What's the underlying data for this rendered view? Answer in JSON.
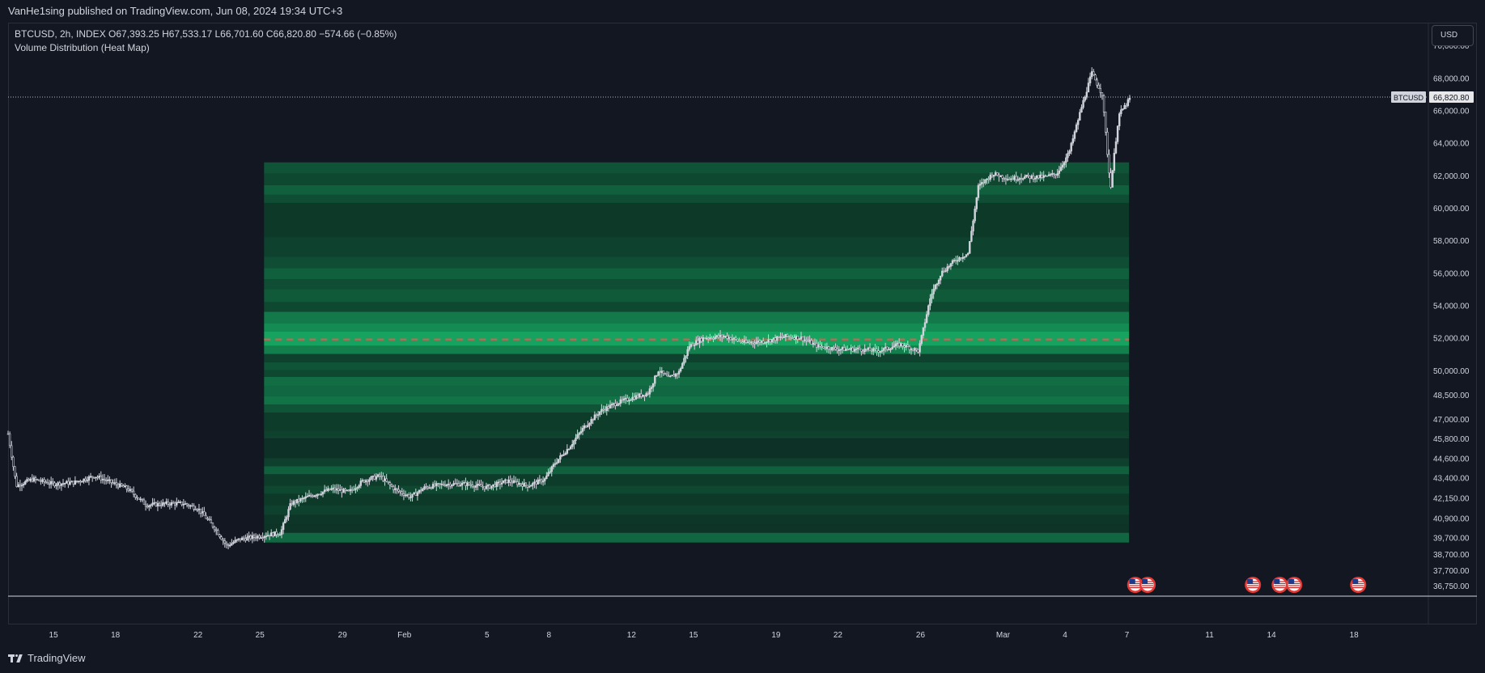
{
  "header": {
    "published": "VanHe1sing published on TradingView.com, Jun 08, 2024 19:34 UTC+3"
  },
  "legend": {
    "symbol_line": "BTCUSD, 2h, INDEX O67,393.25 H67,533.17 L66,701.60 C66,820.80 −574.66 (−0.85%)",
    "indicator": "Volume Distribution (Heat Map)"
  },
  "currency_button": "USD",
  "price_tag": {
    "symbol": "BTCUSD",
    "price": "66,820.80"
  },
  "branding": "TradingView",
  "colors": {
    "background": "#131722",
    "candle": "#d1d4dc",
    "heat_low": "#0c2a22",
    "heat_high": "#16a35f",
    "poc_line": "#ef5350",
    "event_icon": "#e53935"
  },
  "chart_data": {
    "type": "candlestick",
    "symbol": "BTCUSD",
    "interval": "2h",
    "ylim": [
      36100,
      71400
    ],
    "y_ticks": [
      {
        "value": 70000,
        "label": "70,000.00"
      },
      {
        "value": 68000,
        "label": "68,000.00"
      },
      {
        "value": 66000,
        "label": "66,000.00"
      },
      {
        "value": 64000,
        "label": "64,000.00"
      },
      {
        "value": 62000,
        "label": "62,000.00"
      },
      {
        "value": 60000,
        "label": "60,000.00"
      },
      {
        "value": 58000,
        "label": "58,000.00"
      },
      {
        "value": 56000,
        "label": "56,000.00"
      },
      {
        "value": 54000,
        "label": "54,000.00"
      },
      {
        "value": 52000,
        "label": "52,000.00"
      },
      {
        "value": 50000,
        "label": "50,000.00"
      },
      {
        "value": 48500,
        "label": "48,500.00"
      },
      {
        "value": 47000,
        "label": "47,000.00"
      },
      {
        "value": 45800,
        "label": "45,800.00"
      },
      {
        "value": 44600,
        "label": "44,600.00"
      },
      {
        "value": 43400,
        "label": "43,400.00"
      },
      {
        "value": 42150,
        "label": "42,150.00"
      },
      {
        "value": 40900,
        "label": "40,900.00"
      },
      {
        "value": 39700,
        "label": "39,700.00"
      },
      {
        "value": 38700,
        "label": "38,700.00"
      },
      {
        "value": 37700,
        "label": "37,700.00"
      },
      {
        "value": 36750,
        "label": "36,750.00"
      }
    ],
    "x_ticks": [
      {
        "day": 15,
        "label": "15"
      },
      {
        "day": 18,
        "label": "18"
      },
      {
        "day": 22,
        "label": "22"
      },
      {
        "day": 25,
        "label": "25"
      },
      {
        "day": 29,
        "label": "29"
      },
      {
        "day": 32,
        "label": "Feb"
      },
      {
        "day": 36,
        "label": "5"
      },
      {
        "day": 39,
        "label": "8"
      },
      {
        "day": 43,
        "label": "12"
      },
      {
        "day": 46,
        "label": "15"
      },
      {
        "day": 50,
        "label": "19"
      },
      {
        "day": 53,
        "label": "22"
      },
      {
        "day": 57,
        "label": "26"
      },
      {
        "day": 61,
        "label": "Mar"
      },
      {
        "day": 64,
        "label": "4"
      },
      {
        "day": 67,
        "label": "7"
      },
      {
        "day": 71,
        "label": "11"
      },
      {
        "day": 74,
        "label": "14"
      },
      {
        "day": 78,
        "label": "18"
      }
    ],
    "xlim_day": [
      12.8,
      81.6
    ],
    "last_price": 66820.8,
    "price_path": [
      [
        12.8,
        46100
      ],
      [
        13.2,
        42900
      ],
      [
        14,
        43300
      ],
      [
        15,
        43000
      ],
      [
        16,
        43100
      ],
      [
        17,
        43500
      ],
      [
        18,
        43000
      ],
      [
        18.6,
        42700
      ],
      [
        19.5,
        41700
      ],
      [
        20.5,
        41800
      ],
      [
        21.3,
        41800
      ],
      [
        22,
        41500
      ],
      [
        22.8,
        40300
      ],
      [
        23.4,
        39200
      ],
      [
        24,
        39600
      ],
      [
        25,
        39800
      ],
      [
        26,
        40000
      ],
      [
        26.5,
        41800
      ],
      [
        27.5,
        42300
      ],
      [
        28.5,
        42700
      ],
      [
        29.3,
        42500
      ],
      [
        30,
        43200
      ],
      [
        30.8,
        43500
      ],
      [
        31.5,
        42700
      ],
      [
        32.3,
        42200
      ],
      [
        33,
        42800
      ],
      [
        34,
        43000
      ],
      [
        35,
        43000
      ],
      [
        36,
        42800
      ],
      [
        37,
        43200
      ],
      [
        38,
        42900
      ],
      [
        38.8,
        43300
      ],
      [
        39.3,
        44300
      ],
      [
        40,
        45300
      ],
      [
        40.7,
        46500
      ],
      [
        41.5,
        47500
      ],
      [
        42.3,
        48000
      ],
      [
        43,
        48300
      ],
      [
        43.8,
        48600
      ],
      [
        44.3,
        50000
      ],
      [
        44.8,
        49500
      ],
      [
        45.3,
        49900
      ],
      [
        45.8,
        51500
      ],
      [
        46.5,
        52000
      ],
      [
        47.5,
        52100
      ],
      [
        48.5,
        51700
      ],
      [
        49.5,
        51800
      ],
      [
        50.5,
        52100
      ],
      [
        51.2,
        52000
      ],
      [
        52,
        51500
      ],
      [
        53,
        51300
      ],
      [
        54,
        51300
      ],
      [
        55,
        51200
      ],
      [
        56,
        51600
      ],
      [
        56.9,
        51200
      ],
      [
        57.5,
        54600
      ],
      [
        58,
        56000
      ],
      [
        58.7,
        56800
      ],
      [
        59.3,
        57200
      ],
      [
        59.8,
        61300
      ],
      [
        60.5,
        62100
      ],
      [
        61.3,
        61800
      ],
      [
        62,
        61900
      ],
      [
        63,
        61900
      ],
      [
        63.6,
        62100
      ],
      [
        64.2,
        63400
      ],
      [
        64.8,
        66200
      ],
      [
        65.3,
        68300
      ],
      [
        65.8,
        67000
      ],
      [
        66.2,
        61200
      ],
      [
        66.6,
        65700
      ],
      [
        67.2,
        66820
      ]
    ],
    "volume_profile": {
      "start_day": 25.2,
      "end_day": 67.1,
      "poc_price": 51900,
      "rows": [
        {
          "top": 62800,
          "bottom": 62100,
          "level": 0.35
        },
        {
          "top": 62100,
          "bottom": 61400,
          "level": 0.25
        },
        {
          "top": 61400,
          "bottom": 60800,
          "level": 0.45
        },
        {
          "top": 60800,
          "bottom": 60300,
          "level": 0.3
        },
        {
          "top": 60300,
          "bottom": 58200,
          "level": 0.12
        },
        {
          "top": 58200,
          "bottom": 57000,
          "level": 0.2
        },
        {
          "top": 57000,
          "bottom": 56300,
          "level": 0.3
        },
        {
          "top": 56300,
          "bottom": 55600,
          "level": 0.45
        },
        {
          "top": 55600,
          "bottom": 55000,
          "level": 0.3
        },
        {
          "top": 55000,
          "bottom": 54200,
          "level": 0.4
        },
        {
          "top": 54200,
          "bottom": 53600,
          "level": 0.25
        },
        {
          "top": 53600,
          "bottom": 52900,
          "level": 0.65
        },
        {
          "top": 52900,
          "bottom": 52400,
          "level": 0.8
        },
        {
          "top": 52400,
          "bottom": 51500,
          "level": 1.0
        },
        {
          "top": 51500,
          "bottom": 51000,
          "level": 0.7
        },
        {
          "top": 51000,
          "bottom": 50500,
          "level": 0.2
        },
        {
          "top": 50500,
          "bottom": 50000,
          "level": 0.35
        },
        {
          "top": 50000,
          "bottom": 49600,
          "level": 0.25
        },
        {
          "top": 49600,
          "bottom": 49000,
          "level": 0.55
        },
        {
          "top": 49000,
          "bottom": 48400,
          "level": 0.5
        },
        {
          "top": 48400,
          "bottom": 47900,
          "level": 0.6
        },
        {
          "top": 47900,
          "bottom": 47400,
          "level": 0.35
        },
        {
          "top": 47400,
          "bottom": 46300,
          "level": 0.15
        },
        {
          "top": 46300,
          "bottom": 45800,
          "level": 0.2
        },
        {
          "top": 45800,
          "bottom": 44600,
          "level": 0.06
        },
        {
          "top": 44600,
          "bottom": 44100,
          "level": 0.18
        },
        {
          "top": 44100,
          "bottom": 43600,
          "level": 0.45
        },
        {
          "top": 43600,
          "bottom": 42900,
          "level": 0.15
        },
        {
          "top": 42900,
          "bottom": 42400,
          "level": 0.25
        },
        {
          "top": 42400,
          "bottom": 41700,
          "level": 0.12
        },
        {
          "top": 41700,
          "bottom": 41100,
          "level": 0.2
        },
        {
          "top": 41100,
          "bottom": 40500,
          "level": 0.1
        },
        {
          "top": 40500,
          "bottom": 40000,
          "level": 0.08
        },
        {
          "top": 40000,
          "bottom": 39400,
          "level": 0.5
        }
      ]
    },
    "event_markers_day": [
      67.4,
      68.0,
      73.1,
      74.4,
      75.1,
      78.2
    ]
  }
}
